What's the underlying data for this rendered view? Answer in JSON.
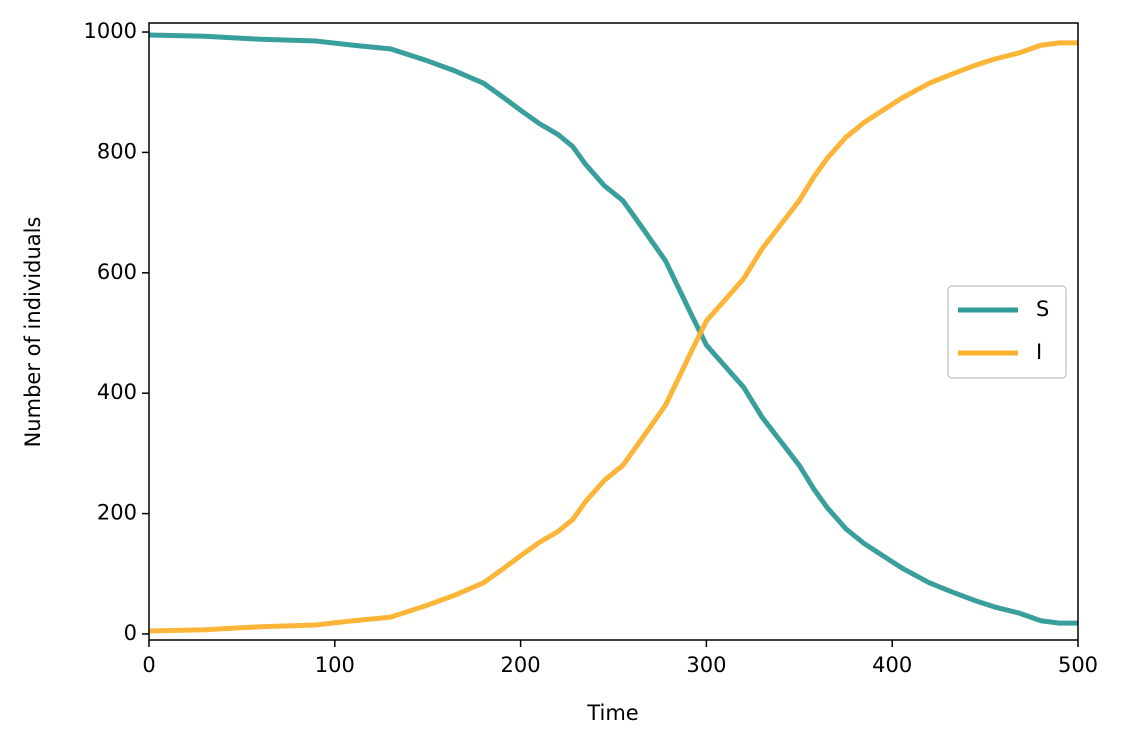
{
  "chart_data": {
    "type": "line",
    "x_label": "Time",
    "y_label": "Number of individuals",
    "x": [
      0,
      30,
      60,
      90,
      110,
      130,
      140,
      150,
      165,
      180,
      190,
      200,
      210,
      220,
      228,
      235,
      245,
      255,
      262,
      270,
      278,
      285,
      292,
      300,
      310,
      320,
      330,
      340,
      350,
      358,
      365,
      375,
      385,
      395,
      405,
      420,
      432,
      445,
      455,
      468,
      480,
      490,
      500
    ],
    "series": [
      {
        "name": "S",
        "color": "#2e9a98",
        "values": [
          995,
          993,
          988,
          985,
          978,
          972,
          962,
          952,
          935,
          915,
          893,
          870,
          848,
          830,
          810,
          780,
          745,
          720,
          690,
          655,
          620,
          575,
          530,
          480,
          445,
          410,
          360,
          320,
          280,
          240,
          210,
          175,
          150,
          130,
          110,
          85,
          70,
          55,
          45,
          35,
          22,
          18,
          18
        ]
      },
      {
        "name": "I",
        "color": "#fbb22e",
        "values": [
          5,
          7,
          12,
          15,
          22,
          28,
          38,
          48,
          65,
          85,
          107,
          130,
          152,
          170,
          190,
          220,
          255,
          280,
          310,
          345,
          380,
          425,
          470,
          520,
          555,
          590,
          640,
          680,
          720,
          760,
          790,
          825,
          850,
          870,
          890,
          915,
          930,
          945,
          955,
          965,
          978,
          982,
          982
        ]
      }
    ],
    "xlim": [
      0,
      500
    ],
    "xticks": [
      0,
      100,
      200,
      300,
      400,
      500
    ],
    "ylim": [
      -10,
      1015
    ],
    "yticks": [
      0,
      200,
      400,
      600,
      800,
      1000
    ],
    "legend": "right"
  }
}
